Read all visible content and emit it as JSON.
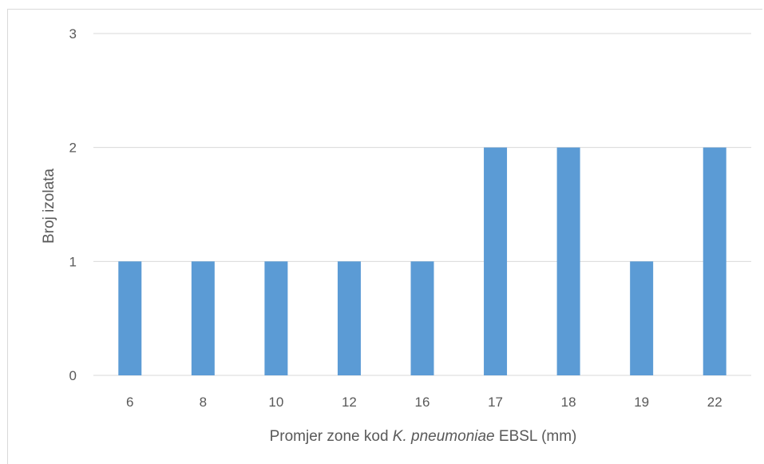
{
  "chart_data": {
    "type": "bar",
    "categories": [
      "6",
      "8",
      "10",
      "12",
      "16",
      "17",
      "18",
      "19",
      "22"
    ],
    "values": [
      1,
      1,
      1,
      1,
      1,
      2,
      2,
      1,
      2
    ],
    "ylabel": "Broj izolata",
    "xlabel_parts": [
      {
        "text": "Promjer zone kod ",
        "italic": false
      },
      {
        "text": "K. pneumoniae",
        "italic": true
      },
      {
        "text": " EBSL (mm)",
        "italic": false
      }
    ],
    "ylim": [
      0,
      3
    ],
    "yticks": [
      "0",
      "1",
      "2",
      "3"
    ],
    "grid": true,
    "colors": {
      "bar": "#5b9bd5",
      "grid": "#d9d9d9",
      "text": "#595959"
    }
  }
}
